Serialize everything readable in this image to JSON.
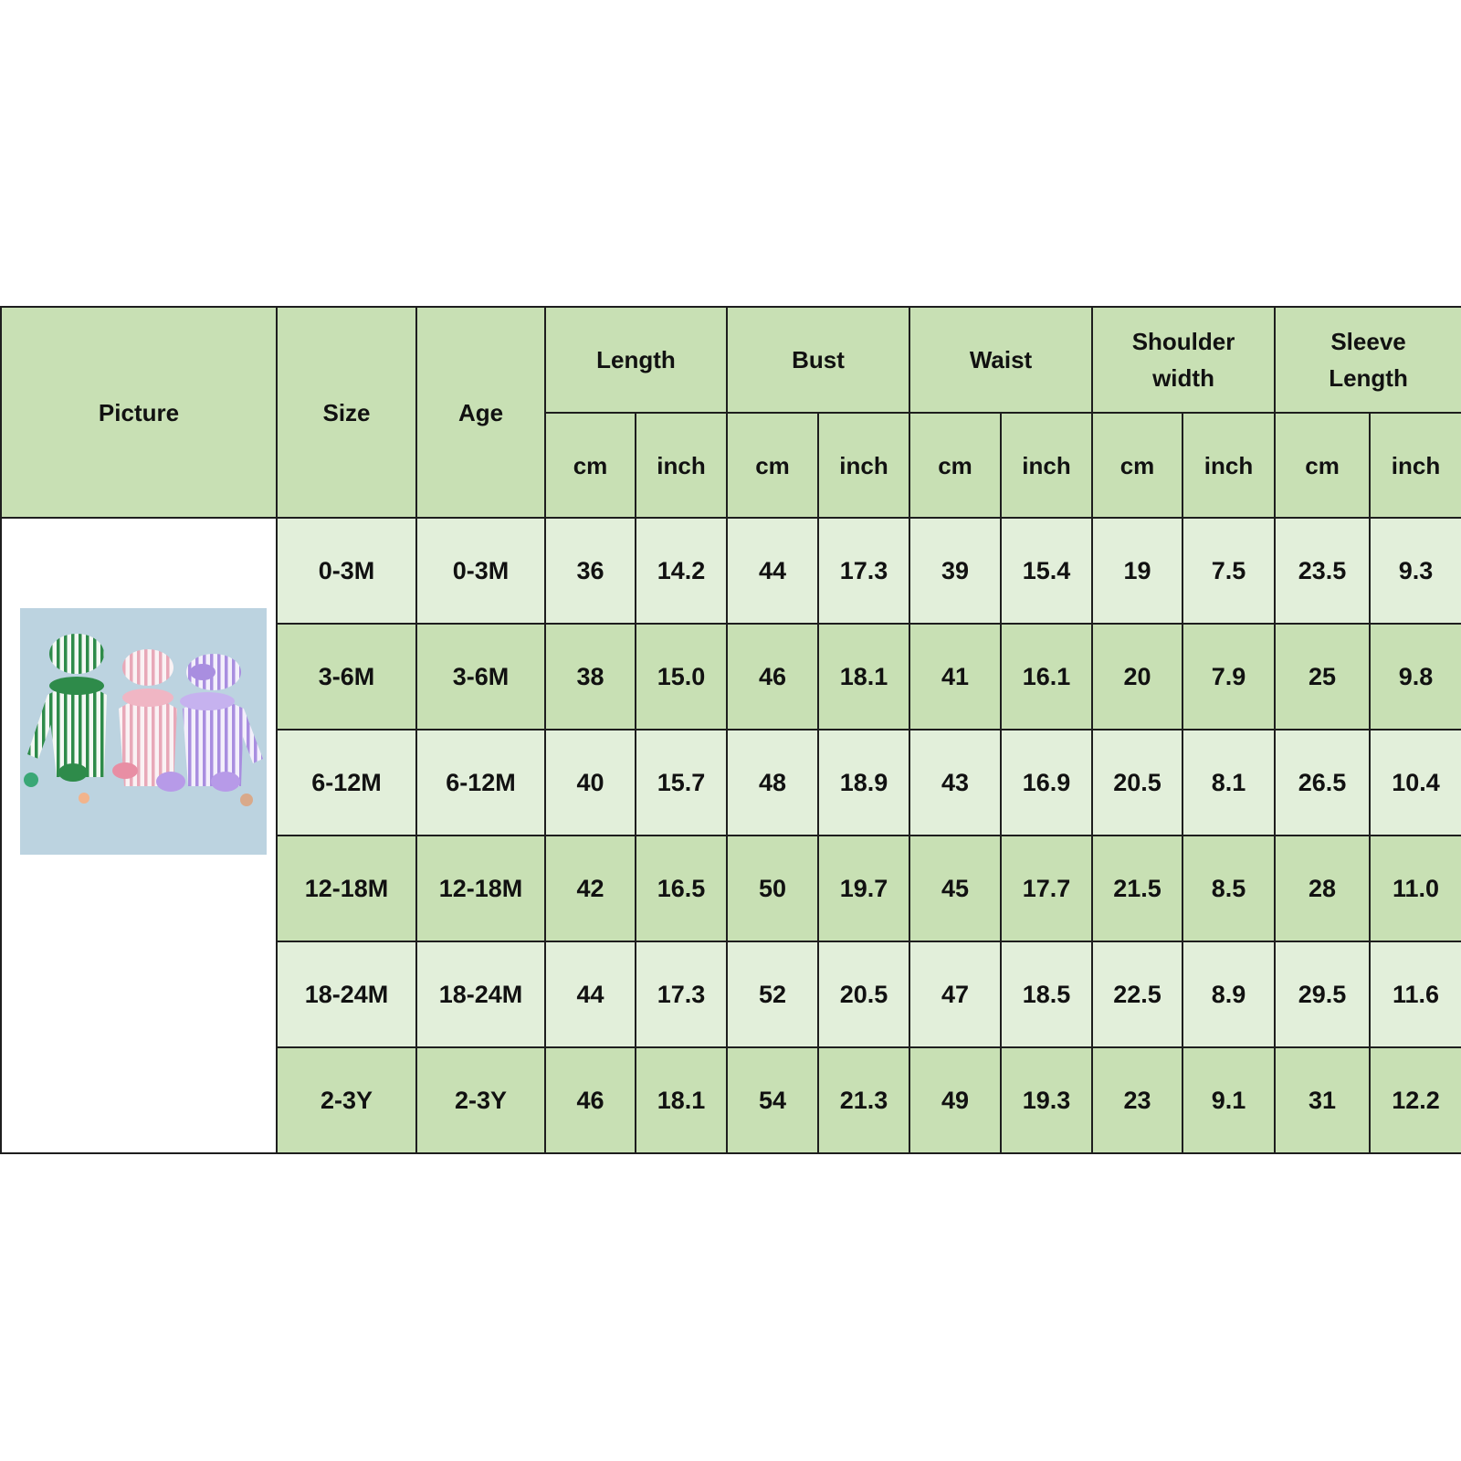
{
  "colors": {
    "header": "#c8e0b4",
    "row_light": "#e2efda",
    "row_dark": "#c8e0b4",
    "border": "#1e1e1e"
  },
  "header": {
    "picture": "Picture",
    "size": "Size",
    "age": "Age",
    "groups": [
      "Length",
      "Bust",
      "Waist",
      "Shoulder width",
      "Sleeve Length"
    ],
    "units": [
      "cm",
      "inch"
    ]
  },
  "picture_icon": "striped-baby-rompers-photo",
  "rows": [
    {
      "size": "0-3M",
      "age": "0-3M",
      "values": [
        "36",
        "14.2",
        "44",
        "17.3",
        "39",
        "15.4",
        "19",
        "7.5",
        "23.5",
        "9.3"
      ]
    },
    {
      "size": "3-6M",
      "age": "3-6M",
      "values": [
        "38",
        "15.0",
        "46",
        "18.1",
        "41",
        "16.1",
        "20",
        "7.9",
        "25",
        "9.8"
      ]
    },
    {
      "size": "6-12M",
      "age": "6-12M",
      "values": [
        "40",
        "15.7",
        "48",
        "18.9",
        "43",
        "16.9",
        "20.5",
        "8.1",
        "26.5",
        "10.4"
      ]
    },
    {
      "size": "12-18M",
      "age": "12-18M",
      "values": [
        "42",
        "16.5",
        "50",
        "19.7",
        "45",
        "17.7",
        "21.5",
        "8.5",
        "28",
        "11.0"
      ]
    },
    {
      "size": "18-24M",
      "age": "18-24M",
      "values": [
        "44",
        "17.3",
        "52",
        "20.5",
        "47",
        "18.5",
        "22.5",
        "8.9",
        "29.5",
        "11.6"
      ]
    },
    {
      "size": "2-3Y",
      "age": "2-3Y",
      "values": [
        "46",
        "18.1",
        "54",
        "21.3",
        "49",
        "19.3",
        "23",
        "9.1",
        "31",
        "12.2"
      ]
    }
  ]
}
